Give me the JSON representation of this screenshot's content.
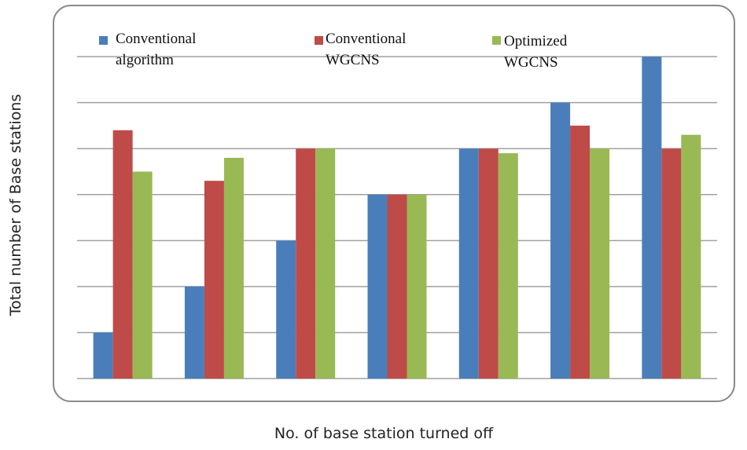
{
  "chart_data": {
    "type": "bar",
    "title": "",
    "xlabel": "No. of base station turned off",
    "ylabel": "Total number  of Base stations",
    "categories": [
      "",
      "",
      "",
      "",
      "",
      "",
      ""
    ],
    "series": [
      {
        "name": "Conventional algorithm",
        "color": "#4a7ebb",
        "values": [
          1,
          2,
          3,
          4,
          5,
          6,
          7
        ]
      },
      {
        "name": "Conventional WGCNS",
        "color": "#be4b48",
        "values": [
          5.4,
          4.3,
          5,
          4,
          5,
          5.5,
          5
        ]
      },
      {
        "name": "Optimized WGCNS",
        "color": "#98b954",
        "values": [
          4.5,
          4.8,
          5,
          4,
          4.9,
          5,
          5.3
        ]
      }
    ],
    "ylim": [
      0,
      7.6
    ],
    "grid": true,
    "legend_position": "top"
  },
  "legend": {
    "items": [
      {
        "line1": "Conventional",
        "line2": "algorithm"
      },
      {
        "line1": "Conventional",
        "line2": "WGCNS"
      },
      {
        "line1": "Optimized",
        "line2": "WGCNS"
      }
    ]
  }
}
